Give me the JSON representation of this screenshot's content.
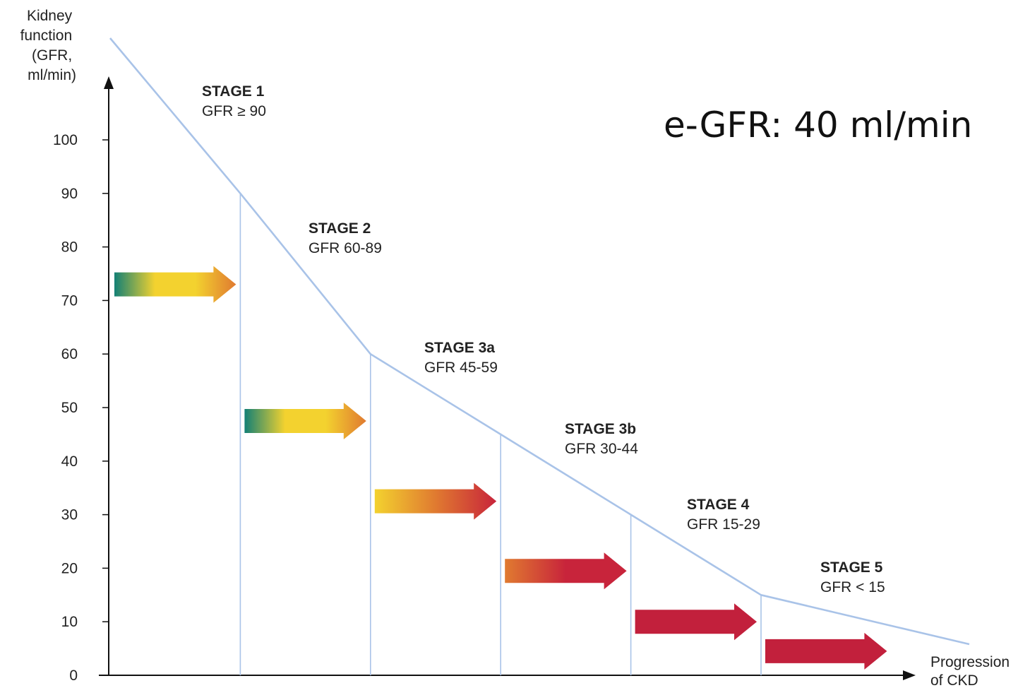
{
  "chart_data": {
    "type": "line",
    "ylabel": [
      "Kidney",
      "function",
      "(GFR,",
      "ml/min)"
    ],
    "xlabel": [
      "Progression",
      "of CKD"
    ],
    "ylim": [
      0,
      100
    ],
    "yticks": [
      "0",
      "10",
      "20",
      "30",
      "40",
      "50",
      "60",
      "70",
      "80",
      "90",
      "100"
    ],
    "grid": false,
    "line_color": "#a9c3e8",
    "series": [
      {
        "points": [
          {
            "x": 0,
            "y": 119
          },
          {
            "x": 1,
            "y": 90
          },
          {
            "x": 2,
            "y": 60
          },
          {
            "x": 3,
            "y": 45
          },
          {
            "x": 4,
            "y": 30
          },
          {
            "x": 5,
            "y": 15
          },
          {
            "x": 6.6,
            "y": 5.8
          }
        ]
      }
    ],
    "stage_boundaries": [
      1,
      2,
      3,
      4,
      5
    ],
    "stages": [
      {
        "name": "STAGE 1",
        "range": "GFR ≥ 90"
      },
      {
        "name": "STAGE 2",
        "range": "GFR 60-89"
      },
      {
        "name": "STAGE 3a",
        "range": "GFR 45-59"
      },
      {
        "name": "STAGE 3b",
        "range": "GFR 30-44"
      },
      {
        "name": "STAGE 4",
        "range": "GFR 15-29"
      },
      {
        "name": "STAGE 5",
        "range": "GFR < 15"
      }
    ],
    "arrows": [
      {
        "level": 73,
        "gradient": [
          "#138075",
          "#f3d22f",
          "#f3d22f",
          "#e07a30"
        ]
      },
      {
        "level": 47.5,
        "gradient": [
          "#138075",
          "#f3d22f",
          "#f3d22f",
          "#e07a30"
        ]
      },
      {
        "level": 32.5,
        "gradient": [
          "#f3d22f",
          "#e07a30",
          "#c8243b"
        ]
      },
      {
        "level": 19.5,
        "gradient": [
          "#e07a30",
          "#c8243b",
          "#c8243b"
        ]
      },
      {
        "level": 10,
        "gradient": [
          "#c2203c",
          "#c2203c"
        ]
      },
      {
        "level": 4.5,
        "gradient": [
          "#c2203c",
          "#c2203c"
        ]
      }
    ],
    "annotation": "e-GFR: 40 ml/min"
  }
}
